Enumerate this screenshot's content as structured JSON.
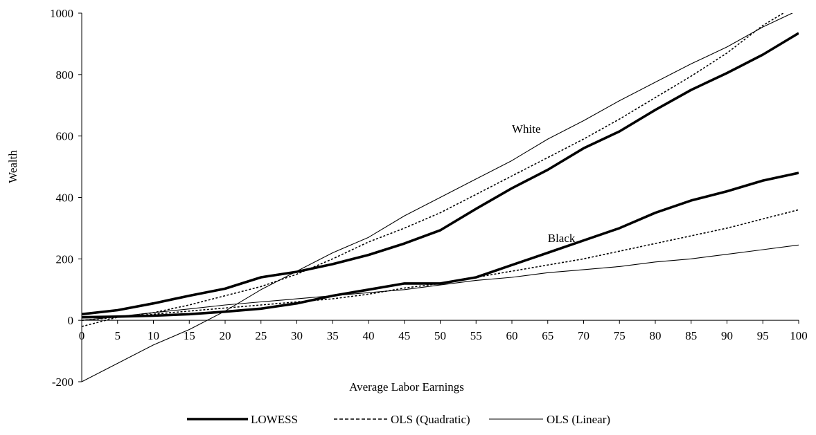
{
  "chart_data": {
    "type": "line",
    "title": "",
    "xlabel": "Average Labor Earnings",
    "ylabel": "Wealth",
    "xlim": [
      0,
      100
    ],
    "ylim": [
      -200,
      1000
    ],
    "x_ticks": [
      0,
      5,
      10,
      15,
      20,
      25,
      30,
      35,
      40,
      45,
      50,
      55,
      60,
      65,
      70,
      75,
      80,
      85,
      90,
      95,
      100
    ],
    "y_ticks": [
      -200,
      0,
      200,
      400,
      600,
      800,
      1000
    ],
    "grid": false,
    "legend_position": "bottom",
    "legend": [
      {
        "label": "LOWESS",
        "style": "thick-solid"
      },
      {
        "label": "OLS (Quadratic)",
        "style": "dotted"
      },
      {
        "label": "OLS (Linear)",
        "style": "thin-solid"
      }
    ],
    "annotations": [
      {
        "text": "White",
        "x": 60,
        "y": 610
      },
      {
        "text": "Black",
        "x": 65,
        "y": 255
      }
    ],
    "x": [
      0,
      5,
      10,
      15,
      20,
      25,
      30,
      35,
      40,
      45,
      50,
      55,
      60,
      65,
      70,
      75,
      80,
      85,
      90,
      95,
      100
    ],
    "series": [
      {
        "name": "White LOWESS",
        "group": "White",
        "method": "LOWESS",
        "values": [
          20,
          33,
          55,
          80,
          103,
          140,
          158,
          183,
          213,
          250,
          293,
          363,
          430,
          490,
          560,
          615,
          685,
          750,
          805,
          865,
          935
        ]
      },
      {
        "name": "White OLS (Quadratic)",
        "group": "White",
        "method": "OLS (Quadratic)",
        "values": [
          -20,
          10,
          25,
          50,
          80,
          110,
          150,
          200,
          255,
          300,
          350,
          410,
          470,
          530,
          590,
          655,
          725,
          795,
          870,
          960,
          1030
        ]
      },
      {
        "name": "White OLS (Linear)",
        "group": "White",
        "method": "OLS (Linear)",
        "values": [
          -200,
          -140,
          -80,
          -30,
          30,
          100,
          160,
          220,
          270,
          340,
          400,
          460,
          520,
          590,
          650,
          715,
          775,
          835,
          890,
          955,
          1010
        ]
      },
      {
        "name": "Black LOWESS",
        "group": "Black",
        "method": "LOWESS",
        "values": [
          10,
          12,
          15,
          20,
          28,
          38,
          55,
          80,
          100,
          120,
          120,
          140,
          180,
          220,
          260,
          300,
          350,
          390,
          420,
          455,
          480
        ]
      },
      {
        "name": "Black OLS (Quadratic)",
        "group": "Black",
        "method": "OLS (Quadratic)",
        "values": [
          0,
          10,
          20,
          30,
          40,
          50,
          60,
          70,
          85,
          105,
          120,
          140,
          160,
          180,
          200,
          225,
          250,
          275,
          300,
          330,
          360
        ]
      },
      {
        "name": "Black OLS (Linear)",
        "group": "Black",
        "method": "OLS (Linear)",
        "values": [
          0,
          12,
          25,
          37,
          50,
          60,
          70,
          80,
          90,
          100,
          115,
          130,
          140,
          155,
          165,
          175,
          190,
          200,
          215,
          230,
          245
        ]
      }
    ]
  }
}
